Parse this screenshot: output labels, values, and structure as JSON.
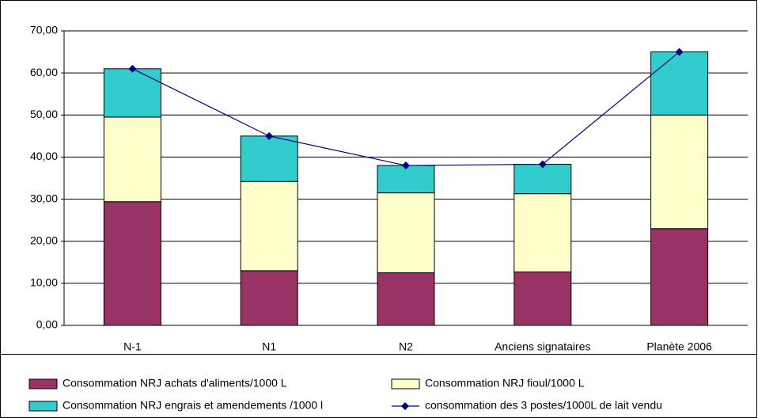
{
  "chart_data": {
    "type": "bar",
    "categories": [
      "N-1",
      "N1",
      "N2",
      "Anciens signataires",
      "Planète 2006"
    ],
    "stacked": true,
    "series": [
      {
        "name": "Consommation NRJ achats d'aliments/1000 L",
        "color": "#993366",
        "values": [
          29.4,
          13.0,
          12.5,
          12.7,
          23.0
        ]
      },
      {
        "name": "Consommation NRJ fioul/1000 L",
        "color": "#ffffcc",
        "values": [
          20.1,
          21.2,
          19.0,
          18.6,
          27.0
        ]
      },
      {
        "name": "Consommation NRJ engrais et amendements /1000 l",
        "color": "#33cccc",
        "values": [
          11.5,
          10.8,
          6.5,
          7.0,
          15.0
        ]
      },
      {
        "name": "consommation des 3 postes/1000L de lait vendu",
        "type": "line",
        "color": "#000080",
        "values": [
          61.0,
          45.0,
          38.0,
          38.3,
          65.0
        ]
      }
    ],
    "ylim": [
      0,
      70
    ],
    "yticks": [
      {
        "value": 0,
        "label": "0,00"
      },
      {
        "value": 10,
        "label": "10,00"
      },
      {
        "value": 20,
        "label": "20,00"
      },
      {
        "value": 30,
        "label": "30,00"
      },
      {
        "value": 40,
        "label": "40,00"
      },
      {
        "value": 50,
        "label": "50,00"
      },
      {
        "value": 60,
        "label": "60,00"
      },
      {
        "value": 70,
        "label": "70,00"
      }
    ],
    "grid": true,
    "legend": "bottom"
  }
}
